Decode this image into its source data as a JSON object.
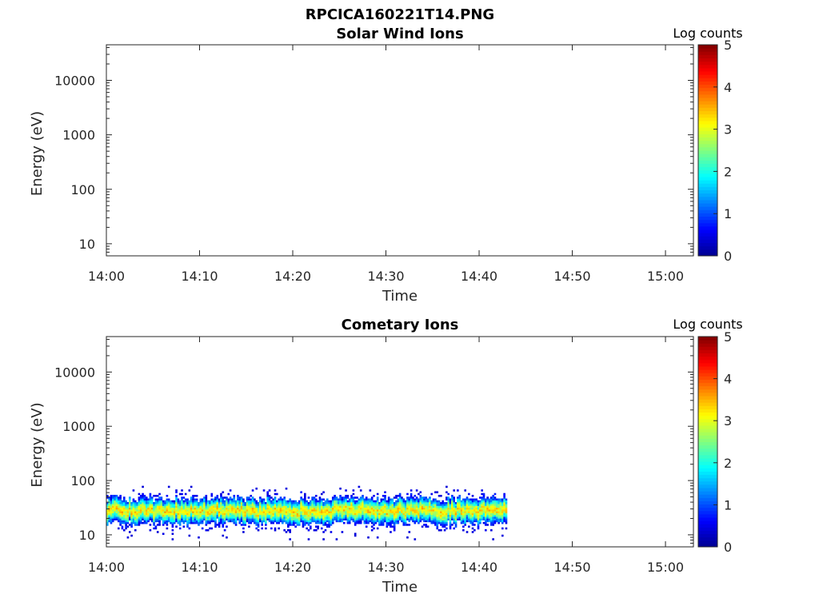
{
  "figure_title": "RPCICA160221T14.PNG",
  "colors": {
    "colormap": [
      "#00008f",
      "#0000ff",
      "#0080ff",
      "#00ffff",
      "#80ff80",
      "#ffff00",
      "#ff8000",
      "#ff0000",
      "#800000"
    ]
  },
  "chart_data": [
    {
      "type": "heatmap",
      "title": "Solar Wind Ions",
      "xlabel": "Time",
      "ylabel": "Energy (eV)",
      "yscale": "log",
      "ylim": [
        6,
        45000
      ],
      "xlim": [
        "14:00",
        "15:03"
      ],
      "xticks": [
        "14:00",
        "14:10",
        "14:20",
        "14:30",
        "14:40",
        "14:50",
        "15:00"
      ],
      "yticks": [
        "10",
        "100",
        "1000",
        "10000"
      ],
      "colorbar": {
        "label": "Log counts",
        "range": [
          0,
          5
        ],
        "ticks": [
          "0",
          "1",
          "2",
          "3",
          "4",
          "5"
        ]
      },
      "data_present": false
    },
    {
      "type": "heatmap",
      "title": "Cometary Ions",
      "xlabel": "Time",
      "ylabel": "Energy (eV)",
      "yscale": "log",
      "ylim": [
        6,
        45000
      ],
      "xlim": [
        "14:00",
        "15:03"
      ],
      "xticks": [
        "14:00",
        "14:10",
        "14:20",
        "14:30",
        "14:40",
        "14:50",
        "15:00"
      ],
      "yticks": [
        "10",
        "100",
        "1000",
        "10000"
      ],
      "colorbar": {
        "label": "Log counts",
        "range": [
          0,
          5
        ],
        "ticks": [
          "0",
          "1",
          "2",
          "3",
          "4",
          "5"
        ]
      },
      "data_present": true,
      "data_time_range": [
        "14:00",
        "14:43"
      ],
      "data_energy_range_eV": [
        8,
        80
      ],
      "peak_energy_eV": 28,
      "peak_log_counts": 3.2
    }
  ]
}
